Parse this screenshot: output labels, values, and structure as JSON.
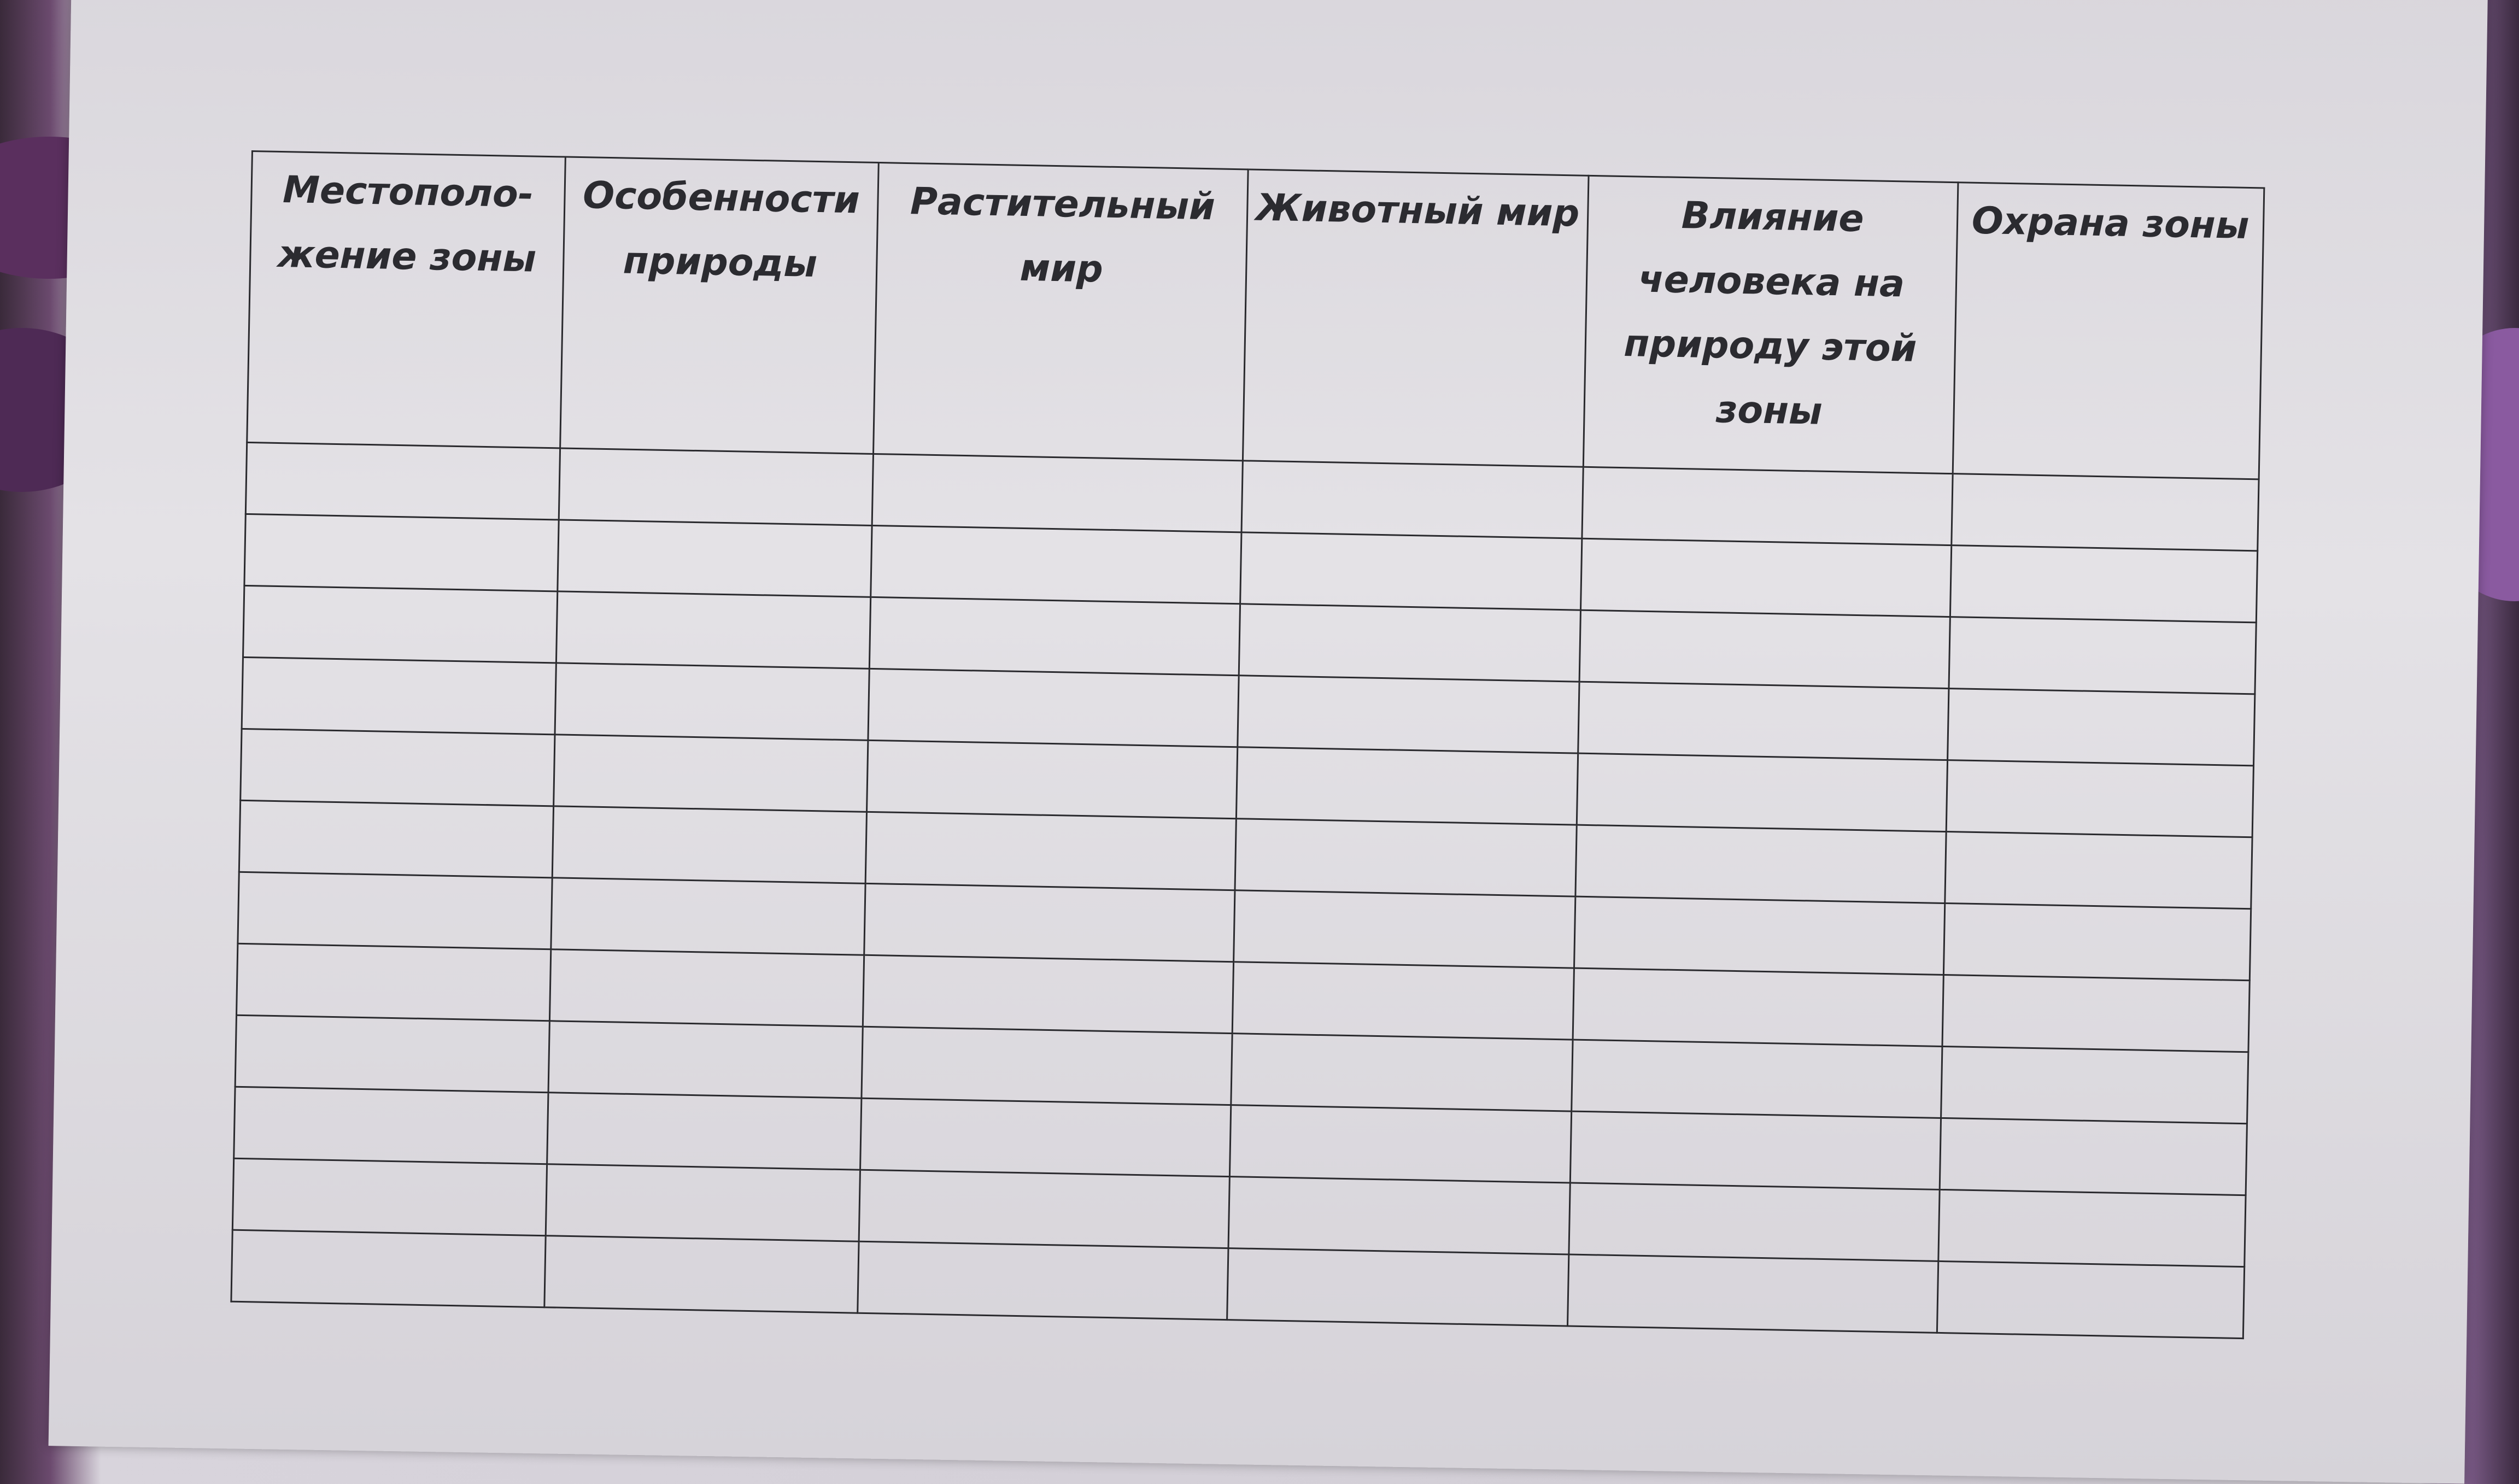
{
  "document": {
    "table": {
      "headers": [
        "Местополо-жение зоны",
        "Особенности природы",
        "Растительный мир",
        "Животный мир",
        "Влияние человека на природу этой зоны",
        "Охрана зоны"
      ],
      "row_count": 12,
      "rows": [
        [
          "",
          "",
          "",
          "",
          "",
          ""
        ],
        [
          "",
          "",
          "",
          "",
          "",
          ""
        ],
        [
          "",
          "",
          "",
          "",
          "",
          ""
        ],
        [
          "",
          "",
          "",
          "",
          "",
          ""
        ],
        [
          "",
          "",
          "",
          "",
          "",
          ""
        ],
        [
          "",
          "",
          "",
          "",
          "",
          ""
        ],
        [
          "",
          "",
          "",
          "",
          "",
          ""
        ],
        [
          "",
          "",
          "",
          "",
          "",
          ""
        ],
        [
          "",
          "",
          "",
          "",
          "",
          ""
        ],
        [
          "",
          "",
          "",
          "",
          "",
          ""
        ],
        [
          "",
          "",
          "",
          "",
          "",
          ""
        ],
        [
          "",
          "",
          "",
          "",
          "",
          ""
        ]
      ]
    }
  }
}
